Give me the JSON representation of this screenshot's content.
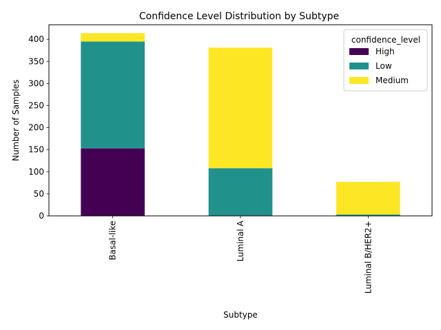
{
  "chart_data": {
    "type": "bar",
    "stacked": true,
    "title": "Confidence Level Distribution by Subtype",
    "xlabel": "Subtype",
    "ylabel": "Number of Samples",
    "categories": [
      "Basal-like",
      "Luminal A",
      "Luminal B/HER2+"
    ],
    "series": [
      {
        "name": "High",
        "color": "#440154",
        "values": [
          153,
          0,
          0
        ]
      },
      {
        "name": "Low",
        "color": "#21918c",
        "values": [
          242,
          108,
          3
        ]
      },
      {
        "name": "Medium",
        "color": "#fde725",
        "values": [
          19,
          273,
          74
        ]
      }
    ],
    "ylim": [
      0,
      433
    ],
    "yticks": [
      0,
      50,
      100,
      150,
      200,
      250,
      300,
      350,
      400
    ],
    "grid": false,
    "legend": {
      "title": "confidence_level",
      "placement": "top-right"
    }
  }
}
